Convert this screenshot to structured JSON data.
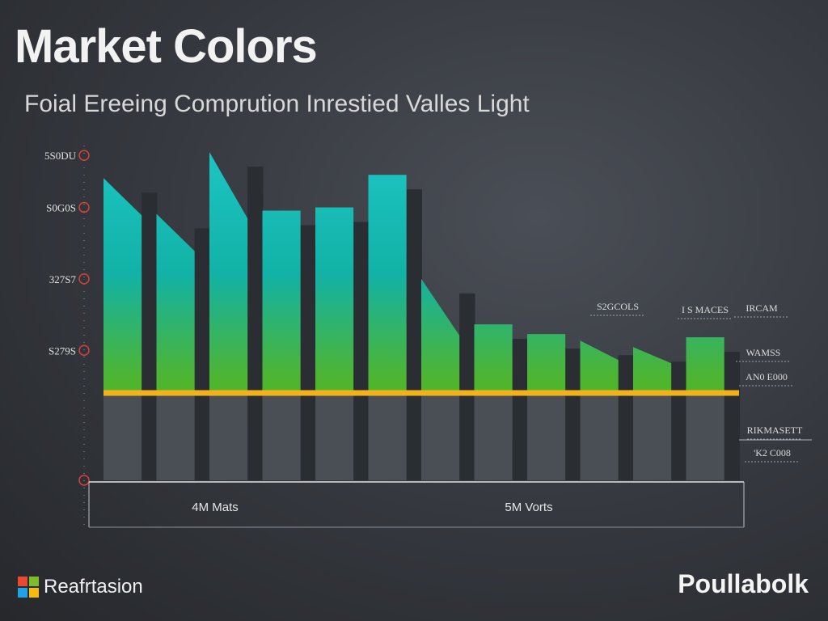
{
  "title": "Market Colors",
  "subtitle": "Foial Ereeing Comprution Inrestied Valles Light",
  "brand_left": {
    "name": "Reafrtasion",
    "logo_colors": [
      "#e8492f",
      "#7cbb2a",
      "#1fa3e8",
      "#f7b90d"
    ]
  },
  "brand_right": {
    "name": "Poullabolk"
  },
  "colors": {
    "bar_top": "#1ec8c8",
    "bar_mid": "#12b2a6",
    "bar_green": "#4fb52f",
    "bar_bottom": "#4a4e55",
    "bar_side": "#2a2d32",
    "baseline": "#f2b21c",
    "marker": "#d8423a",
    "axis": "#9a9ea6"
  },
  "chart_data": {
    "type": "bar",
    "title": "Market Colors",
    "subtitle": "Foial Ereeing Comprution Inrestied Valles Light",
    "categories": [
      "",
      "",
      "",
      "",
      "",
      "",
      "",
      "",
      "",
      "",
      "",
      ""
    ],
    "values": [
      4650,
      4100,
      5050,
      4150,
      4200,
      4700,
      3100,
      2400,
      2250,
      2150,
      2050,
      2200
    ],
    "ylim": [
      0,
      5400
    ],
    "yticks": [
      {
        "label": "5S0DU",
        "value": 5000
      },
      {
        "label": "S0G0S",
        "value": 4200
      },
      {
        "label": "327S7",
        "value": 3100
      },
      {
        "label": "S279S",
        "value": 2000
      },
      {
        "label": "",
        "value": 0
      }
    ],
    "x_group_labels": [
      "4M Mats",
      "5M Vorts"
    ],
    "annotations": [
      "S2GCOLS",
      "I S MACES",
      "IRCAM",
      "WAMSS",
      "AN0 E000",
      "RIKMASETT",
      "'K2 C008"
    ],
    "baseline_value": 1350,
    "grid": false,
    "legend": "none"
  }
}
